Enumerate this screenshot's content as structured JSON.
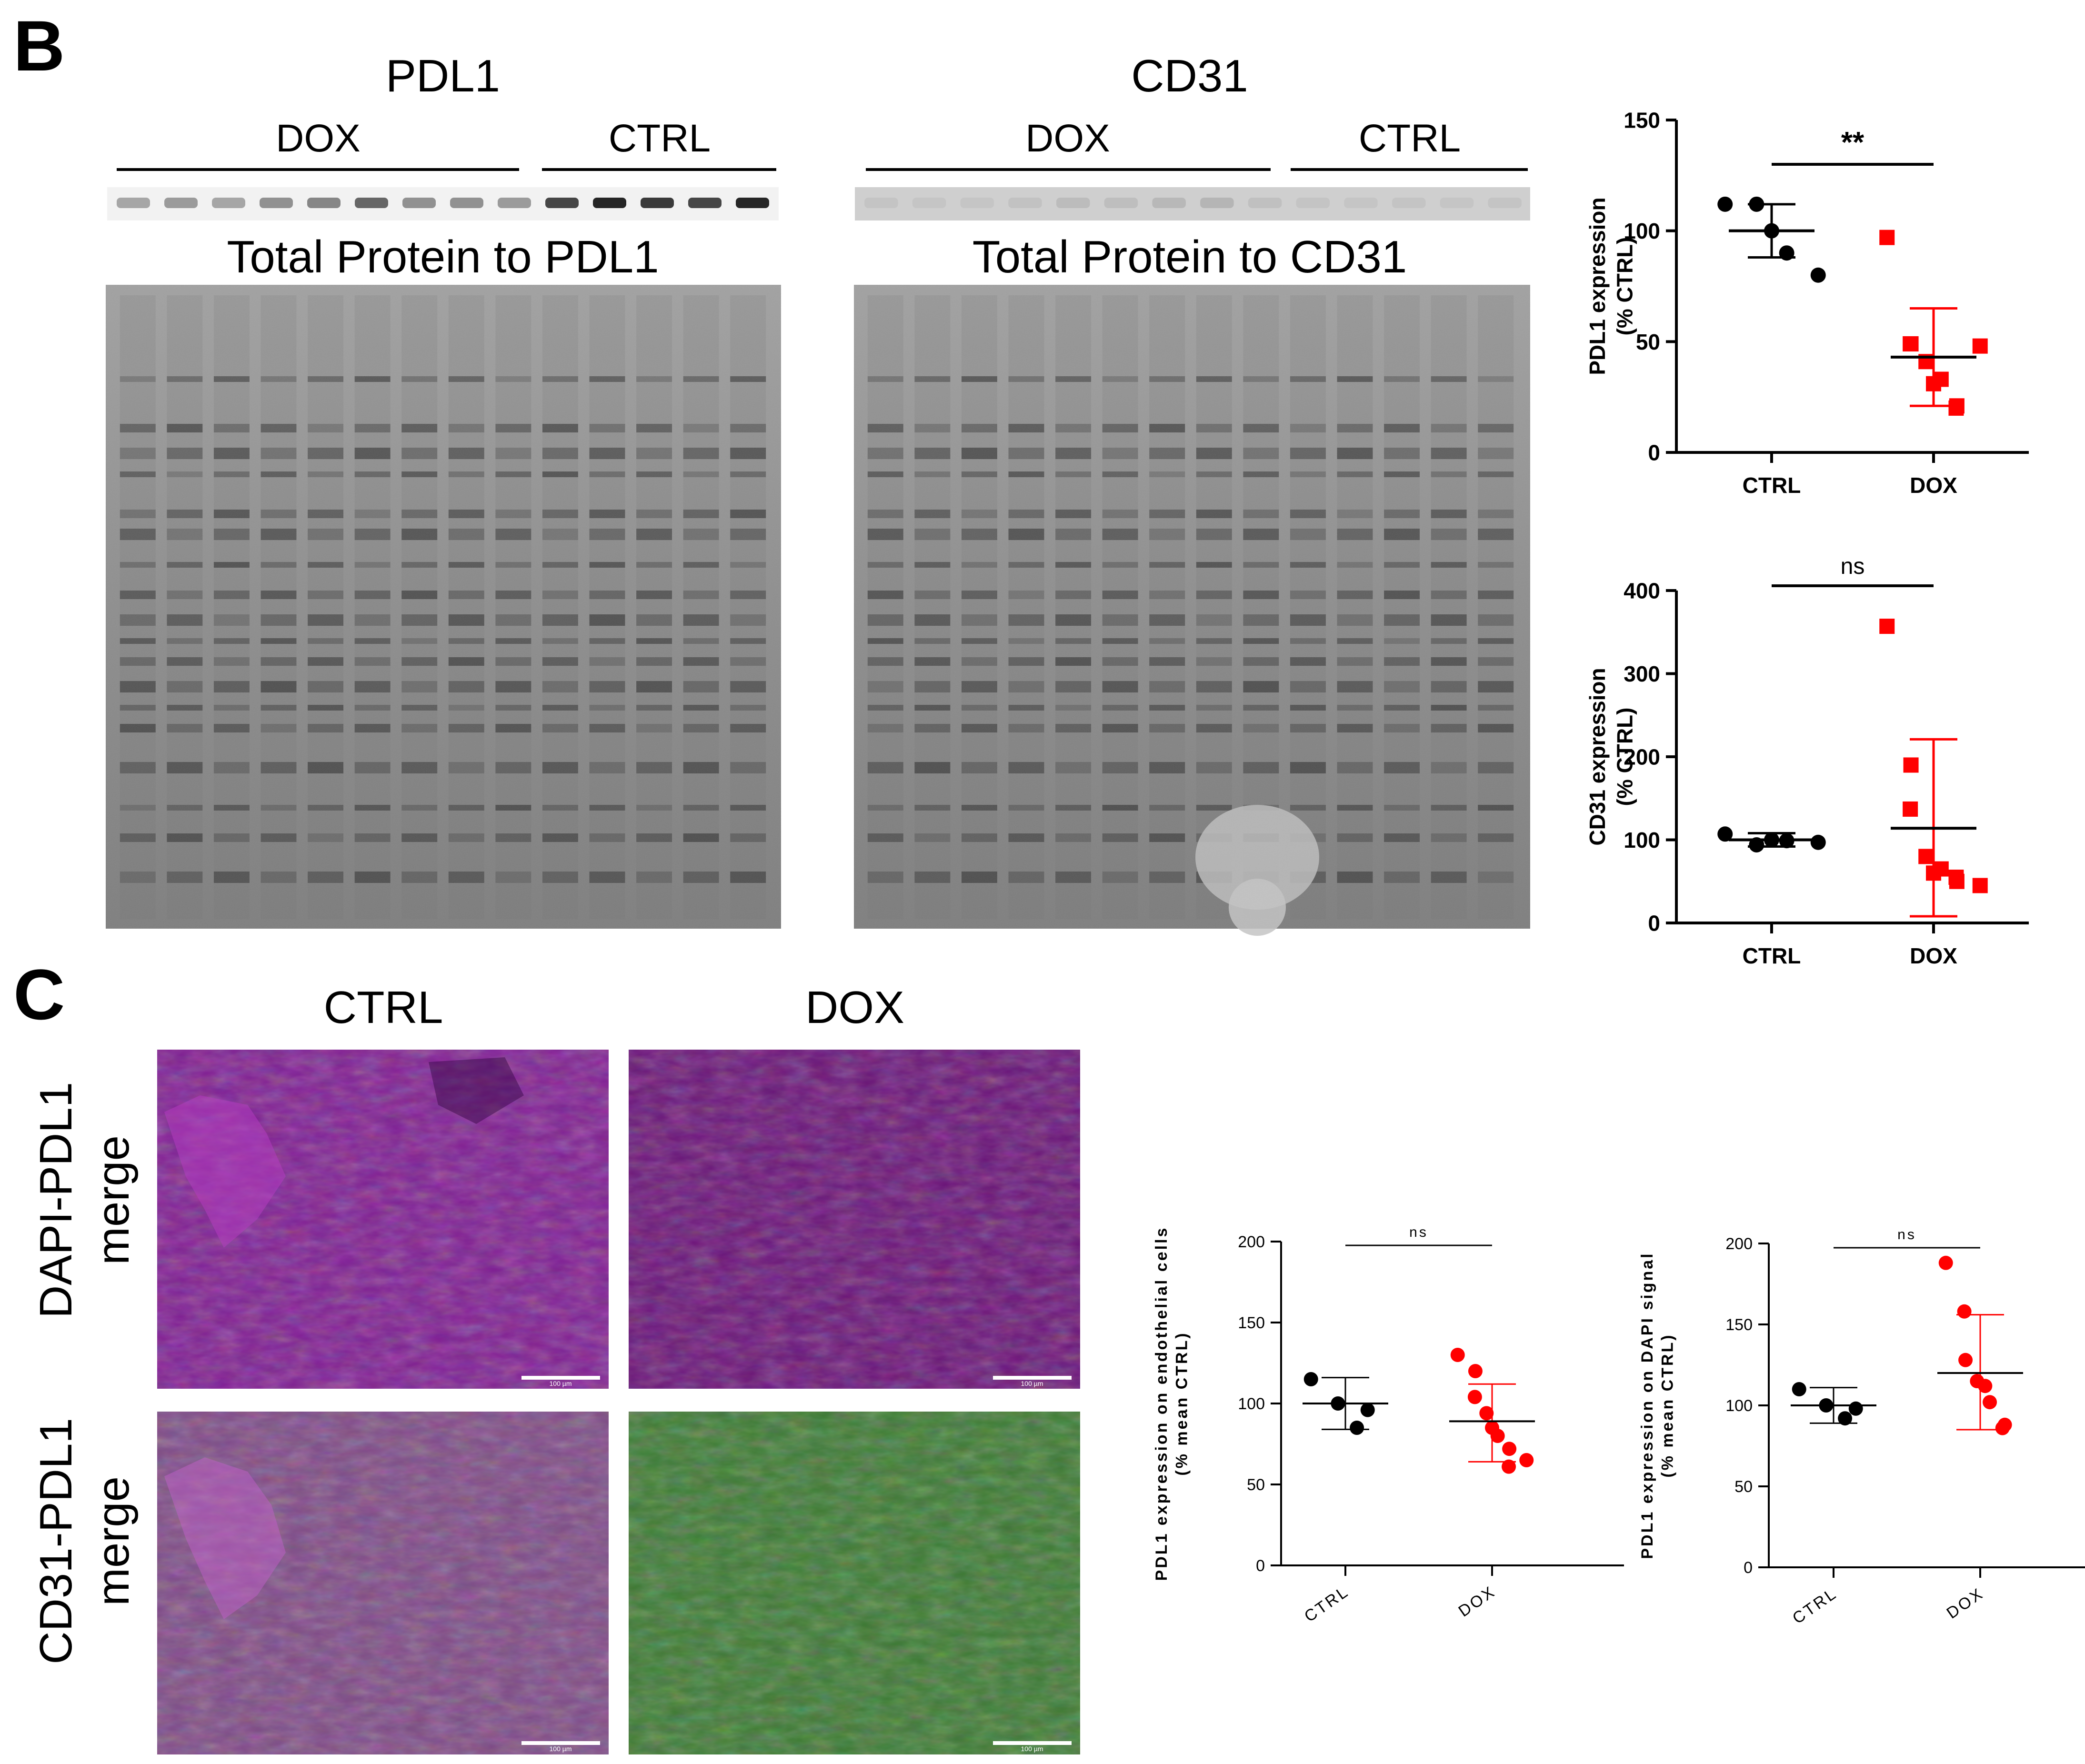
{
  "panels": {
    "B": {
      "letter": "B",
      "blot_pdl1": {
        "title": "PDL1",
        "group_left": "DOX",
        "group_right": "CTRL",
        "total_protein_title": "Total Protein to PDL1"
      },
      "blot_cd31": {
        "title": "CD31",
        "group_left": "DOX",
        "group_right": "CTRL",
        "total_protein_title": "Total Protein to CD31"
      }
    },
    "C": {
      "letter": "C",
      "col_ctrl": "CTRL",
      "col_dox": "DOX",
      "row1_line1": "DAPI-PDL1",
      "row1_line2": "merge",
      "row2_line1": "CD31-PDL1",
      "row2_line2": "merge",
      "scalebar_label": "100 µm"
    }
  },
  "colors": {
    "ctrl": "#000000",
    "dox": "#ff0000",
    "magenta_tissue": "#8a1a8c",
    "green_tissue": "#3a7a2e",
    "blot_gray": "#8a8a8a"
  },
  "chart_data": [
    {
      "type": "scatter",
      "id": "pdl1_wb",
      "categories": [
        "CTRL",
        "DOX"
      ],
      "ylabel": [
        "PDL1 expression",
        "(% CTRL)"
      ],
      "ylim": [
        0,
        150
      ],
      "yticks": [
        0,
        50,
        100,
        150
      ],
      "significance": "**",
      "series": [
        {
          "category": "CTRL",
          "marker": "circle",
          "color": "#000000",
          "mean": 100,
          "err": [
            88,
            112
          ],
          "values": [
            112,
            112,
            100,
            90,
            80
          ]
        },
        {
          "category": "DOX",
          "marker": "square",
          "color": "#ff0000",
          "mean": 43,
          "err": [
            21,
            65
          ],
          "values": [
            97,
            49,
            49,
            41,
            31,
            33,
            21,
            20,
            48
          ]
        }
      ]
    },
    {
      "type": "scatter",
      "id": "cd31_wb",
      "categories": [
        "CTRL",
        "DOX"
      ],
      "ylabel": [
        "CD31 expression",
        "(% CTRL)"
      ],
      "ylim": [
        0,
        400
      ],
      "yticks": [
        0,
        100,
        200,
        300,
        400
      ],
      "significance": "ns",
      "series": [
        {
          "category": "CTRL",
          "marker": "circle",
          "color": "#000000",
          "mean": 100,
          "err": [
            92,
            108
          ],
          "values": [
            107,
            94,
            100,
            99,
            97
          ]
        },
        {
          "category": "DOX",
          "marker": "square",
          "color": "#ff0000",
          "mean": 114,
          "err": [
            8,
            221
          ],
          "values": [
            357,
            190,
            137,
            80,
            60,
            65,
            50,
            55,
            45
          ]
        }
      ]
    },
    {
      "type": "scatter",
      "id": "pdl1_endothelial",
      "categories": [
        "CTRL",
        "DOX"
      ],
      "ylabel": [
        "PDL1 expression on endothelial cells",
        "(% mean CTRL)"
      ],
      "ylim": [
        0,
        200
      ],
      "yticks": [
        0,
        50,
        100,
        150,
        200
      ],
      "significance": "ns",
      "series": [
        {
          "category": "CTRL",
          "marker": "circle",
          "color": "#000000",
          "mean": 100,
          "err": [
            84,
            116
          ],
          "values": [
            115,
            100,
            85,
            96
          ]
        },
        {
          "category": "DOX",
          "marker": "circle",
          "color": "#ff0000",
          "mean": 89,
          "err": [
            64,
            112
          ],
          "values": [
            130,
            120,
            104,
            94,
            85,
            80,
            72,
            61,
            65
          ]
        }
      ]
    },
    {
      "type": "scatter",
      "id": "pdl1_dapi",
      "categories": [
        "CTRL",
        "DOX"
      ],
      "ylabel": [
        "PDL1 expression on DAPI signal",
        "(% mean CTRL)"
      ],
      "ylim": [
        0,
        200
      ],
      "yticks": [
        0,
        50,
        100,
        150,
        200
      ],
      "significance": "ns",
      "series": [
        {
          "category": "CTRL",
          "marker": "circle",
          "color": "#000000",
          "mean": 100,
          "err": [
            89,
            111
          ],
          "values": [
            110,
            100,
            92,
            98
          ]
        },
        {
          "category": "DOX",
          "marker": "circle",
          "color": "#ff0000",
          "mean": 120,
          "err": [
            85,
            156
          ],
          "values": [
            188,
            158,
            128,
            115,
            112,
            102,
            88,
            86
          ]
        }
      ]
    }
  ]
}
